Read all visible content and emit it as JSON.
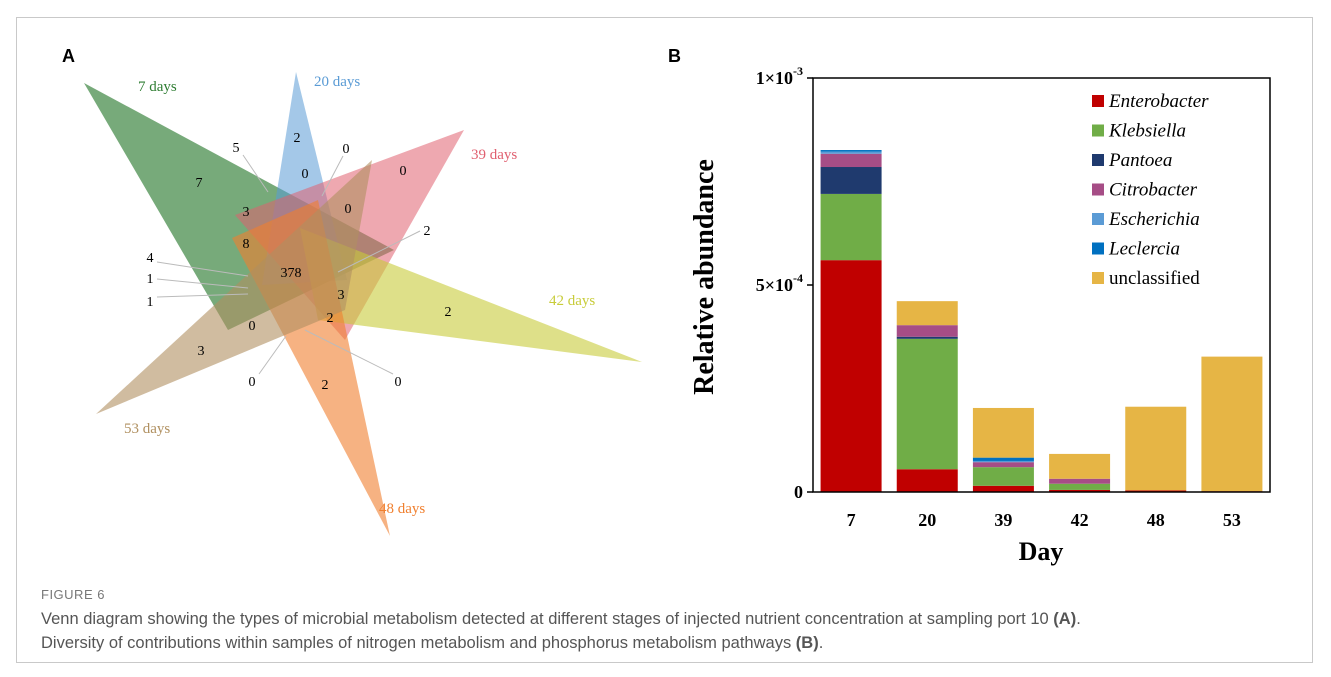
{
  "figure": {
    "label": "FIGURE 6",
    "caption_1": "Venn diagram showing the types of microbial metabolism detected at different stages of injected nutrient concentration at sampling port 10 ",
    "caption_1_ref": "(A)",
    "caption_1_end": ".",
    "caption_2": "Diversity of contributions within samples of nitrogen metabolism and phosphorus metabolism pathways ",
    "caption_2_ref": "(B)",
    "caption_2_end": "."
  },
  "panels": {
    "a_label": "A",
    "b_label": "B"
  },
  "venn": {
    "sets": [
      {
        "name": "7 days",
        "color": "#2e7d32"
      },
      {
        "name": "20 days",
        "color": "#5a9bd5"
      },
      {
        "name": "39 days",
        "color": "#e06070"
      },
      {
        "name": "42 days",
        "color": "#c8cc3a"
      },
      {
        "name": "48 days",
        "color": "#f07f2e"
      },
      {
        "name": "53 days",
        "color": "#b09060"
      }
    ],
    "region_counts": [
      "378",
      "7",
      "2",
      "0",
      "2",
      "2",
      "3",
      "5",
      "0",
      "0",
      "0",
      "3",
      "8",
      "3",
      "2",
      "0",
      "4",
      "1",
      "1",
      "2",
      "0",
      "0"
    ]
  },
  "chart_data": {
    "type": "bar",
    "stacked": true,
    "categories": [
      "7",
      "20",
      "39",
      "42",
      "48",
      "53"
    ],
    "xlabel": "Day",
    "ylabel": "Relative abundance",
    "ylim": [
      0,
      0.001
    ],
    "yticks": [
      {
        "value": 0,
        "label": "0",
        "exp": ""
      },
      {
        "value": 0.0005,
        "label": "5×10",
        "exp": "-4"
      },
      {
        "value": 0.001,
        "label": "1×10",
        "exp": "-3"
      }
    ],
    "legend_position": "top-right",
    "series": [
      {
        "name": "Enterobacter",
        "italic": true,
        "color": "#c00000",
        "values": [
          0.00056,
          5.5e-05,
          1.5e-05,
          5e-06,
          4e-06,
          2e-06
        ]
      },
      {
        "name": "Klebsiella",
        "italic": true,
        "color": "#70ad47",
        "values": [
          0.00016,
          0.000315,
          4.5e-05,
          1.5e-05,
          0,
          0
        ]
      },
      {
        "name": "Pantoea",
        "italic": true,
        "color": "#1f3a6e",
        "values": [
          6.5e-05,
          5e-06,
          0,
          0,
          0,
          0
        ]
      },
      {
        "name": "Citrobacter",
        "italic": true,
        "color": "#a64d86",
        "values": [
          3.2e-05,
          2.8e-05,
          1.2e-05,
          1.2e-05,
          0,
          0
        ]
      },
      {
        "name": "Escherichia",
        "italic": true,
        "color": "#5b9bd5",
        "values": [
          5e-06,
          0,
          3e-06,
          0,
          0,
          0
        ]
      },
      {
        "name": "Leclercia",
        "italic": true,
        "color": "#0070c0",
        "values": [
          4e-06,
          0,
          8e-06,
          0,
          0,
          0
        ]
      },
      {
        "name": "unclassified",
        "italic": false,
        "color": "#e6b545",
        "values": [
          0,
          5.8e-05,
          0.00012,
          6e-05,
          0.000202,
          0.000325
        ]
      }
    ]
  }
}
